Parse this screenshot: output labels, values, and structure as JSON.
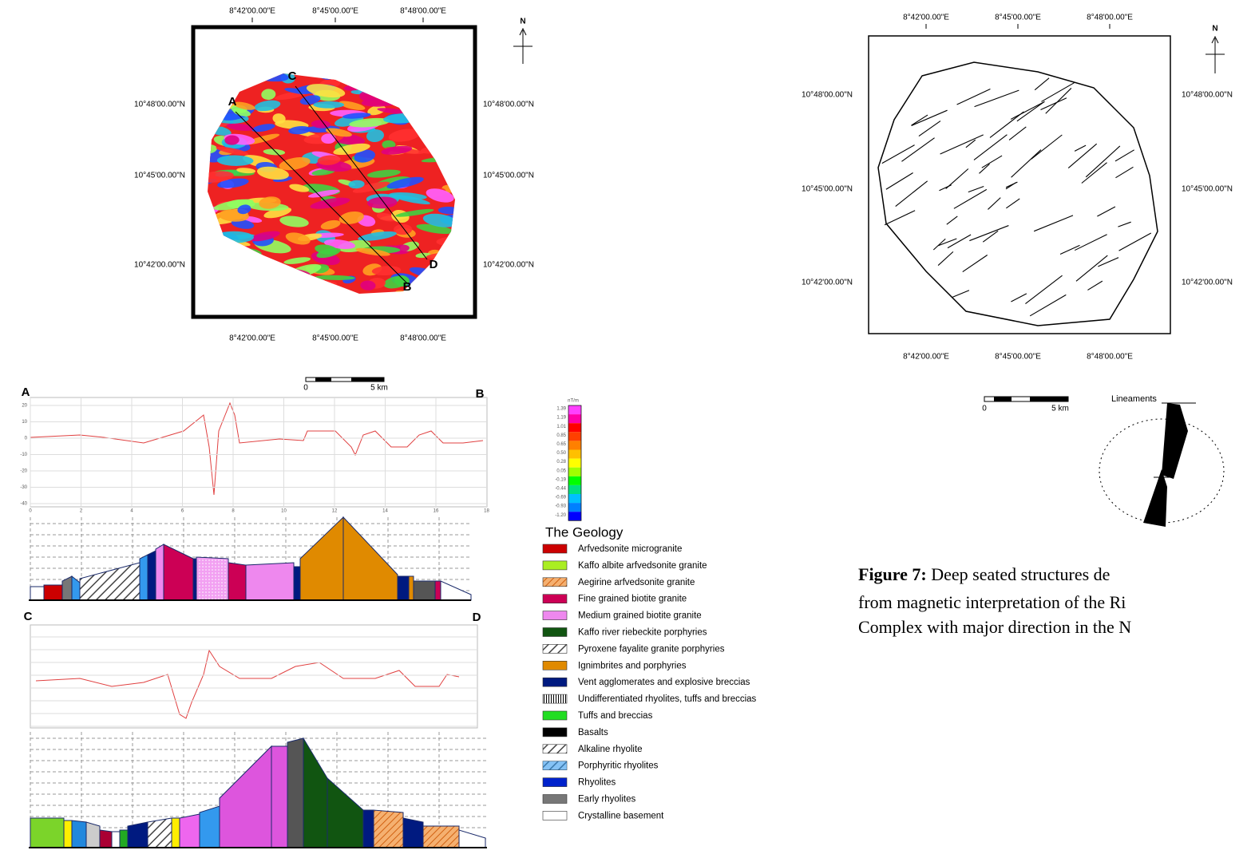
{
  "left_map": {
    "top_lon": [
      "8°42'00.00\"E",
      "8°45'00.00\"E",
      "8°48'00.00\"E"
    ],
    "bottom_lon": [
      "8°42'00.00\"E",
      "8°45'00.00\"E",
      "8°48'00.00\"E"
    ],
    "left_lat": [
      "10°48'00.00\"N",
      "10°45'00.00\"N",
      "10°42'00.00\"N"
    ],
    "right_lat": [
      "10°48'00.00\"N",
      "10°45'00.00\"N",
      "10°42'00.00\"N"
    ],
    "north": "N",
    "profile_labels": [
      "A",
      "C",
      "B",
      "D"
    ]
  },
  "colorbar": {
    "unit": "nT/m",
    "labels": [
      "1.39",
      "1.19",
      "1.01",
      "0.85",
      "0.65",
      "0.50",
      "0.28",
      "0.05",
      "-0.19",
      "-0.44",
      "-0.69",
      "-0.93",
      "-1.20"
    ]
  },
  "profile_ab": {
    "start": "A",
    "end": "B",
    "scale": [
      "0",
      "5 km"
    ],
    "yticks": [
      "20",
      "10",
      "0",
      "-10",
      "-20",
      "-30",
      "-40"
    ],
    "xticks": [
      "0",
      "2",
      "4",
      "6",
      "8",
      "10",
      "12",
      "14",
      "16",
      "18"
    ]
  },
  "profile_cd": {
    "start": "C",
    "end": "D"
  },
  "legend": {
    "title": "The Geology",
    "items": [
      {
        "label": "Arfvedsonite microgranite",
        "color": "#cc0000"
      },
      {
        "label": "Kaffo albite arfvedsonite granite",
        "color": "#aaee22"
      },
      {
        "label": "Aegirine arfvedsonite granite",
        "color": "#e07020"
      },
      {
        "label": "Fine grained biotite granite",
        "color": "#cc0055"
      },
      {
        "label": "Medium grained biotite granite",
        "color": "#ee88ee"
      },
      {
        "label": "Kaffo river riebeckite porphyries",
        "color": "#115511"
      },
      {
        "label": "Pyroxene fayalite granite porphyries",
        "color": "#aaaaaa"
      },
      {
        "label": "Ignimbrites and porphyries",
        "color": "#e08a00"
      },
      {
        "label": "Vent agglomerates and explosive breccias",
        "color": "#001a80"
      },
      {
        "label": "Undifferentiated rhyolites, tuffs and breccias",
        "color": "#ffffff"
      },
      {
        "label": "Tuffs and breccias",
        "color": "#22dd22"
      },
      {
        "label": "Basalts",
        "color": "#000000"
      },
      {
        "label": "Alkaline rhyolite",
        "color": "#888888"
      },
      {
        "label": "Porphyritic rhyolites",
        "color": "#3399ee"
      },
      {
        "label": "Rhyolites",
        "color": "#0022cc"
      },
      {
        "label": "Early rhyolites",
        "color": "#777777"
      },
      {
        "label": "Crystalline basement",
        "color": "#ffffff"
      }
    ]
  },
  "right_map": {
    "top_lon": [
      "8°42'00.00\"E",
      "8°45'00.00\"E",
      "8°48'00.00\"E"
    ],
    "bottom_lon": [
      "8°42'00.00\"E",
      "8°45'00.00\"E",
      "8°48'00.00\"E"
    ],
    "left_lat": [
      "10°48'00.00\"N",
      "10°45'00.00\"N",
      "10°42'00.00\"N"
    ],
    "right_lat": [
      "10°48'00.00\"N",
      "10°45'00.00\"N",
      "10°42'00.00\"N"
    ],
    "north": "N",
    "scale": [
      "0",
      "5 km"
    ],
    "rose_label": "Lineaments"
  },
  "caption": {
    "label": "Figure 7:",
    "lines": [
      "Deep seated structures de",
      "from magnetic interpretation of the Ri",
      "Complex with major direction in the N"
    ]
  }
}
